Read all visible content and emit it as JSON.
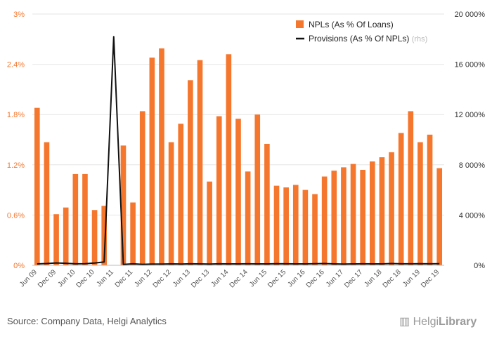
{
  "chart_data": {
    "type": "bar",
    "categories": [
      "Jun 09",
      "Sep 09",
      "Dec 09",
      "Mar 10",
      "Jun 10",
      "Sep 10",
      "Dec 10",
      "Mar 11",
      "Jun 11",
      "Sep 11",
      "Dec 11",
      "Mar 12",
      "Jun 12",
      "Sep 12",
      "Dec 12",
      "Mar 13",
      "Jun 13",
      "Sep 13",
      "Dec 13",
      "Mar 14",
      "Jun 14",
      "Sep 14",
      "Dec 14",
      "Mar 15",
      "Jun 15",
      "Sep 15",
      "Dec 15",
      "Mar 16",
      "Jun 16",
      "Sep 16",
      "Dec 16",
      "Mar 17",
      "Jun 17",
      "Sep 17",
      "Dec 17",
      "Mar 18",
      "Jun 18",
      "Sep 18",
      "Dec 18",
      "Mar 19",
      "Jun 19",
      "Sep 19",
      "Dec 19"
    ],
    "x_tick_labels": [
      "Jun 09",
      "Dec 09",
      "Jun 10",
      "Dec 10",
      "Jun 11",
      "Dec 11",
      "Jun 12",
      "Dec 12",
      "Jun 13",
      "Dec 13",
      "Jun 14",
      "Dec 14",
      "Jun 15",
      "Dec 15",
      "Jun 16",
      "Dec 16",
      "Jun 17",
      "Dec 17",
      "Jun 18",
      "Dec 18",
      "Jun 19",
      "Dec 19"
    ],
    "series": [
      {
        "name": "NPLs (As % Of Loans)",
        "type": "bar",
        "axis": "left",
        "color": "#f5772e",
        "values": [
          1.88,
          1.47,
          0.61,
          0.69,
          1.09,
          1.09,
          0.66,
          0.71,
          0.0,
          1.43,
          0.75,
          1.84,
          2.48,
          2.59,
          1.47,
          1.69,
          2.21,
          2.45,
          1.0,
          1.78,
          2.52,
          1.75,
          1.12,
          1.8,
          1.45,
          0.95,
          0.93,
          0.96,
          0.9,
          0.85,
          1.06,
          1.13,
          1.17,
          1.21,
          1.14,
          1.24,
          1.29,
          1.35,
          1.58,
          1.84,
          1.47,
          1.56,
          1.16
        ]
      },
      {
        "name": "Provisions (As % Of NPLs)",
        "name_suffix": "(rhs)",
        "type": "line",
        "axis": "right",
        "color": "#111111",
        "values": [
          110,
          140,
          190,
          160,
          120,
          130,
          180,
          270,
          18200,
          70,
          120,
          80,
          100,
          100,
          110,
          100,
          120,
          110,
          100,
          120,
          110,
          110,
          120,
          110,
          110,
          130,
          120,
          110,
          110,
          130,
          140,
          110,
          100,
          110,
          120,
          110,
          110,
          140,
          120,
          120,
          130,
          120,
          130
        ]
      }
    ],
    "ylim": [
      0,
      3.0
    ],
    "y_ticks": [
      0,
      0.6,
      1.2,
      1.8,
      2.4,
      3.0
    ],
    "y_tick_labels": [
      "0%",
      "0.6%",
      "1.2%",
      "1.8%",
      "2.4%",
      "3%"
    ],
    "y2lim": [
      0,
      20000
    ],
    "y2_ticks": [
      0,
      4000,
      8000,
      12000,
      16000,
      20000
    ],
    "y2_tick_labels": [
      "0%",
      "4 000%",
      "8 000%",
      "12 000%",
      "16 000%",
      "20 000%"
    ],
    "grid": true,
    "legend_position": "top-right",
    "title": "",
    "xlabel": "",
    "ylabel": ""
  },
  "footer": {
    "source": "Source: Company Data, Helgi Analytics",
    "logo_part1": "Helgi",
    "logo_part2": "Library"
  },
  "colors": {
    "bar": "#f5772e",
    "line": "#111111",
    "left_axis_text": "#f5772e",
    "right_axis_text": "#333333",
    "grid": "#e6e6e6"
  }
}
